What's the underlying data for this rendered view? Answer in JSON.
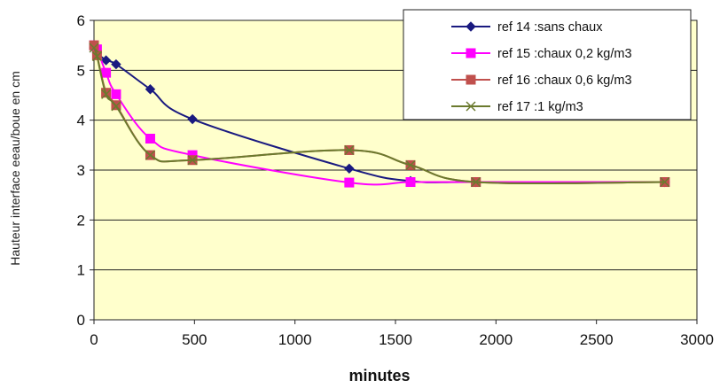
{
  "chart_data": {
    "type": "line",
    "title": "",
    "xlabel": "minutes",
    "ylabel": "Hauteur interface eeau/boue en cm",
    "xlim": [
      0,
      3000
    ],
    "ylim": [
      0,
      6
    ],
    "x_ticks": [
      "0",
      "500",
      "1000",
      "1500",
      "2000",
      "2500",
      "3000"
    ],
    "y_ticks": [
      "0",
      "1",
      "2",
      "3",
      "4",
      "5",
      "6"
    ],
    "grid": "horizontal",
    "legend_position": "top-right",
    "plot_background": "#ffffcc",
    "series": [
      {
        "name": "ref 14 :sans chaux",
        "color": "#1a1a80",
        "marker": "diamond",
        "x": [
          0,
          15,
          60,
          110,
          280,
          490,
          1270,
          1575,
          1900,
          2840
        ],
        "y": [
          5.45,
          5.35,
          5.2,
          5.12,
          4.62,
          4.02,
          3.03,
          2.78,
          2.76,
          2.76
        ]
      },
      {
        "name": "ref 15 :chaux 0,2 kg/m3",
        "color": "#ff00ff",
        "marker": "square",
        "x": [
          0,
          15,
          60,
          110,
          280,
          490,
          1270,
          1575,
          1900,
          2840
        ],
        "y": [
          5.5,
          5.42,
          4.95,
          4.52,
          3.63,
          3.3,
          2.75,
          2.76,
          2.76,
          2.76
        ]
      },
      {
        "name": "ref 16 :chaux 0,6 kg/m3",
        "color": "#c0504d",
        "marker": "square",
        "x": [
          0,
          15,
          60,
          110,
          280,
          490,
          1270,
          1575,
          1900,
          2840
        ],
        "y": [
          5.5,
          5.3,
          4.55,
          4.3,
          3.3,
          3.2,
          3.4,
          3.1,
          2.76,
          2.76
        ]
      },
      {
        "name": "ref 17 :1 kg/m3",
        "color": "#6b7a2e",
        "marker": "x",
        "x": [
          0,
          15,
          60,
          110,
          280,
          490,
          1270,
          1575,
          1900,
          2840
        ],
        "y": [
          5.45,
          5.28,
          4.52,
          4.28,
          3.3,
          3.2,
          3.4,
          3.1,
          2.76,
          2.76
        ]
      }
    ]
  }
}
